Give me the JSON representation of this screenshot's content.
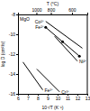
{
  "chart_data": {
    "type": "line",
    "xlabel": "10⁴/T (K⁻¹)",
    "ylabel": "log D (cm²/s)",
    "x2label": "T (°C)",
    "annotation": "MgO",
    "xlim": [
      6,
      13
    ],
    "xticks": [
      6,
      7,
      8,
      9,
      10,
      11,
      12,
      13
    ],
    "ylim": [
      -16,
      -8
    ],
    "yticks": [
      -16,
      -14,
      -12,
      -10,
      -8
    ],
    "x2ticks": [
      {
        "value": 7.86,
        "label": "1000"
      },
      {
        "value": 9.32,
        "label": "800"
      },
      {
        "value": 11.45,
        "label": "600"
      }
    ],
    "series": [
      {
        "name": "Co²⁺",
        "color": "#000000",
        "x": [
          8.8,
          12.5
        ],
        "values": [
          -8.7,
          -11.4
        ]
      },
      {
        "name": "Fe²⁺",
        "color": "#000000",
        "marker": "circle",
        "x": [
          8.8,
          10.5,
          12.2
        ],
        "values": [
          -9.3,
          -10.75,
          -12.2
        ]
      },
      {
        "name": "Ni²⁺",
        "color": "#000000",
        "x": [
          9.7,
          12.0
        ],
        "values": [
          -10.2,
          -12.7
        ]
      },
      {
        "name": "Fe³⁺",
        "color": "#000000",
        "x": [
          6.5,
          8.5
        ],
        "values": [
          -12.8,
          -15.6
        ]
      },
      {
        "name": "Cr³⁺",
        "color": "#000000",
        "x": [
          7.9,
          10.2
        ],
        "values": [
          -13.5,
          -15.8
        ]
      }
    ]
  }
}
